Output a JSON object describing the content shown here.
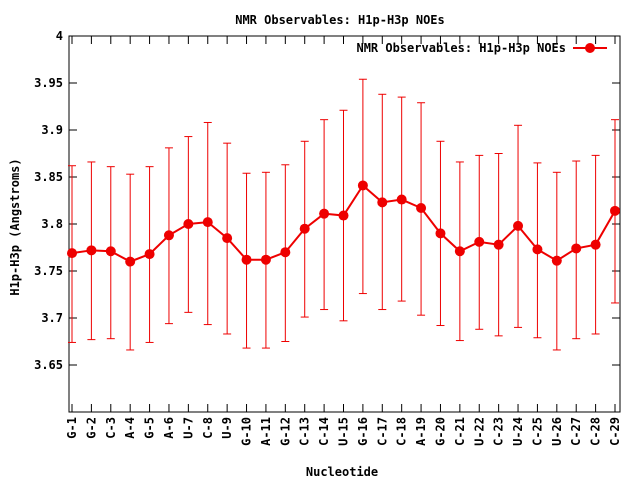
{
  "chart_data": {
    "type": "line",
    "title": "NMR Observables: H1p-H3p NOEs",
    "xlabel": "Nucleotide",
    "ylabel": "H1p-H3p (Angstroms)",
    "ylim": [
      3.6,
      4.0
    ],
    "yticks": [
      "3.65",
      "3.7",
      "3.75",
      "3.8",
      "3.85",
      "3.9",
      "3.95",
      "4"
    ],
    "grid": false,
    "legend_position": "top-right",
    "color": "#ee0000",
    "categories": [
      "G-1",
      "G-2",
      "C-3",
      "A-4",
      "G-5",
      "A-6",
      "U-7",
      "C-8",
      "U-9",
      "G-10",
      "A-11",
      "G-12",
      "C-13",
      "C-14",
      "U-15",
      "G-16",
      "C-17",
      "C-18",
      "A-19",
      "G-20",
      "C-21",
      "U-22",
      "C-23",
      "U-24",
      "C-25",
      "U-26",
      "C-27",
      "C-28",
      "C-29"
    ],
    "series": [
      {
        "name": "NMR Observables: H1p-H3p NOEs",
        "values": [
          3.769,
          3.772,
          3.771,
          3.76,
          3.768,
          3.788,
          3.8,
          3.802,
          3.785,
          3.762,
          3.762,
          3.77,
          3.795,
          3.811,
          3.809,
          3.841,
          3.823,
          3.826,
          3.817,
          3.79,
          3.771,
          3.781,
          3.778,
          3.798,
          3.773,
          3.761,
          3.774,
          3.778,
          3.814
        ],
        "error_low": [
          3.674,
          3.677,
          3.678,
          3.666,
          3.674,
          3.694,
          3.706,
          3.693,
          3.683,
          3.668,
          3.668,
          3.675,
          3.701,
          3.709,
          3.697,
          3.726,
          3.709,
          3.718,
          3.703,
          3.692,
          3.676,
          3.688,
          3.681,
          3.69,
          3.679,
          3.666,
          3.678,
          3.683,
          3.716
        ],
        "error_high": [
          3.862,
          3.866,
          3.861,
          3.853,
          3.861,
          3.881,
          3.893,
          3.908,
          3.886,
          3.854,
          3.855,
          3.863,
          3.888,
          3.911,
          3.921,
          3.954,
          3.938,
          3.935,
          3.929,
          3.888,
          3.866,
          3.873,
          3.875,
          3.905,
          3.865,
          3.855,
          3.867,
          3.873,
          3.911
        ]
      }
    ]
  }
}
